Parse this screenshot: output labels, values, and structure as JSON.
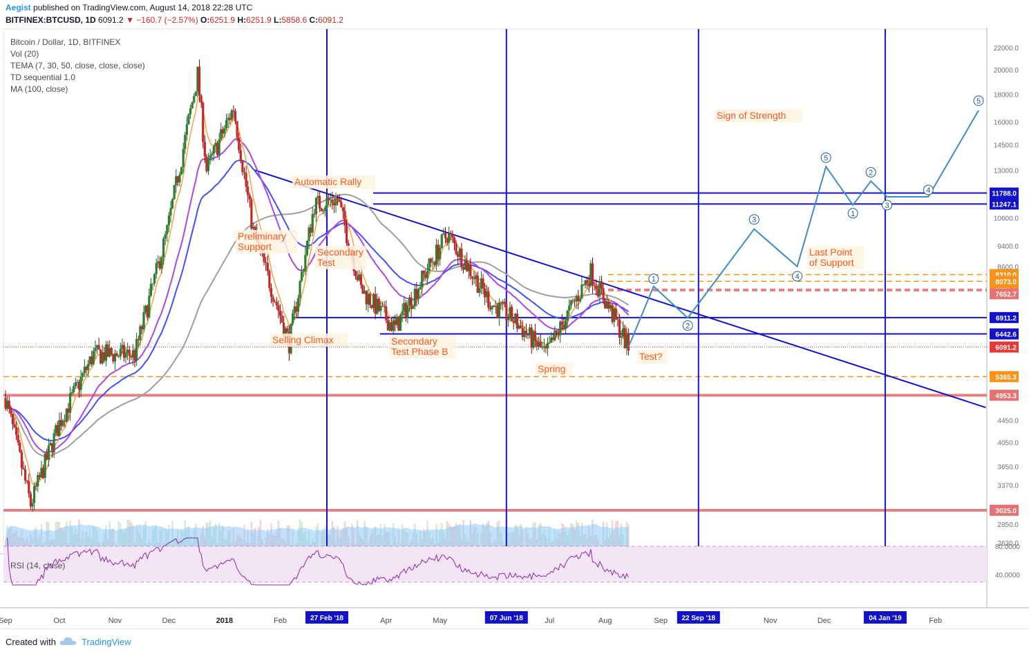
{
  "header": {
    "author": "Aegist",
    "published": "published on TradingView.com, August 14, 2018 22:28 UTC",
    "symbol": "BITFINEX:BTCUSD, 1D",
    "last": "6091.2",
    "change": "−160.7 (−2.57%)",
    "open_label": "O:",
    "open": "6251.9",
    "high_label": "H:",
    "high": "6251.9",
    "low_label": "L:",
    "low": "5858.6",
    "close_label": "C:",
    "close": "6091.2"
  },
  "legend": {
    "title": "Bitcoin / Dollar, 1D, BITFINEX",
    "items": [
      "Vol (20)",
      "TEMA (7, 30, 50, close, close, close)",
      "TD sequential 1.0",
      "MA (100, close)"
    ]
  },
  "rsi_label": "RSI (14, close)",
  "footer": {
    "created": "Created with",
    "brand": "TradingView"
  },
  "chart_data": {
    "type": "candlestick",
    "symbol": "BITFINEX:BTCUSD",
    "interval": "1D",
    "y_axis": {
      "scale": "log",
      "ticks": [
        22000,
        20000,
        18000,
        16000,
        14500,
        13000,
        11788,
        11247.1,
        10600,
        9400,
        8600,
        8310,
        8073,
        7779,
        7652.7,
        6911.2,
        6442.6,
        6091.2,
        5365.3,
        4953.3,
        4450,
        4050,
        3650,
        3370,
        3025,
        2850,
        2630
      ],
      "tick_labels": [
        "22000.0",
        "20000.0",
        "18000.0",
        "16000.0",
        "14500.0",
        "13000.0",
        "10600.0",
        "9400.0",
        "8600.0",
        "4450.0",
        "4050.0",
        "3650.0",
        "3370.0",
        "3000.0",
        "2850.0",
        "2630.0"
      ]
    },
    "x_axis": {
      "labels": [
        "Sep",
        "Oct",
        "Nov",
        "Dec",
        "2018",
        "Feb",
        "Apr",
        "May",
        "Jul",
        "Aug",
        "Sep",
        "Nov",
        "Dec",
        "Feb"
      ],
      "highlighted_dates": [
        "27 Feb '18",
        "07 Jun '18",
        "22 Sep '18",
        "04 Jan '19"
      ]
    },
    "price_path": [
      [
        "2017-09-01",
        4900
      ],
      [
        "2017-09-15",
        3100
      ],
      [
        "2017-10-01",
        4400
      ],
      [
        "2017-10-20",
        5900
      ],
      [
        "2017-11-12",
        5900
      ],
      [
        "2017-11-30",
        10000
      ],
      [
        "2017-12-17",
        19600
      ],
      [
        "2017-12-22",
        13000
      ],
      [
        "2018-01-06",
        17000
      ],
      [
        "2018-01-17",
        10000
      ],
      [
        "2018-02-06",
        6200
      ],
      [
        "2018-02-20",
        11200
      ],
      [
        "2018-03-05",
        11500
      ],
      [
        "2018-03-18",
        7800
      ],
      [
        "2018-04-06",
        6600
      ],
      [
        "2018-05-05",
        9900
      ],
      [
        "2018-05-30",
        7300
      ],
      [
        "2018-06-10",
        6900
      ],
      [
        "2018-06-29",
        5900
      ],
      [
        "2018-07-24",
        8400
      ],
      [
        "2018-08-14",
        6091.2
      ]
    ],
    "horizontal_levels": [
      {
        "label": "11788.0",
        "value": 11788,
        "color": "#1212c8"
      },
      {
        "label": "11247.1",
        "value": 11247.1,
        "color": "#1212c8"
      },
      {
        "label": "8310.0",
        "value": 8310,
        "color": "#f7931a"
      },
      {
        "label": "8073.0",
        "value": 8073,
        "color": "#f7931a"
      },
      {
        "label": "7779.0",
        "value": 7779,
        "color": "#f7931a"
      },
      {
        "label": "7652.7",
        "value": 7652.7,
        "color": "#e57373"
      },
      {
        "label": "6911.2",
        "value": 6911.2,
        "color": "#1212c8"
      },
      {
        "label": "6442.6",
        "value": 6442.6,
        "color": "#1212c8"
      },
      {
        "label": "6091.2",
        "value": 6091.2,
        "color": "#e53935"
      },
      {
        "label": "5365.3",
        "value": 5365.3,
        "color": "#f7931a"
      },
      {
        "label": "4953.3",
        "value": 4953.3,
        "color": "#e57373"
      },
      {
        "label": "3025.0",
        "value": 3025,
        "color": "#e57373"
      }
    ],
    "annotations": [
      "Automatic Rally",
      "Preliminary Support",
      "Secondary Test",
      "Selling Climax",
      "Secondary Test Phase B",
      "Spring",
      "Test?",
      "Last Point of Support",
      "Sign of Strength"
    ],
    "wave_labels": [
      "1",
      "2",
      "3",
      "4",
      "5",
      "1",
      "2",
      "3",
      "4",
      "5"
    ],
    "projection": [
      [
        "2018-08-14",
        6091
      ],
      [
        "2018-08-28",
        7900
      ],
      [
        "2018-09-16",
        6900
      ],
      [
        "2018-10-23",
        10100
      ],
      [
        "2018-11-16",
        8600
      ],
      [
        "2018-12-02",
        13200
      ],
      [
        "2018-12-17",
        11200
      ],
      [
        "2018-12-27",
        12400
      ],
      [
        "2019-01-05",
        11600
      ],
      [
        "2019-01-28",
        11600
      ],
      [
        "2019-02-25",
        16800
      ]
    ],
    "wave_points": [
      [
        "2018-08-28",
        7900
      ],
      [
        "2018-09-16",
        6900
      ],
      [
        "2018-10-23",
        10100
      ],
      [
        "2018-11-16",
        8600
      ],
      [
        "2018-12-02",
        13200
      ],
      [
        "2018-12-17",
        11200
      ],
      [
        "2018-12-27",
        12400
      ],
      [
        "2019-01-05",
        11600
      ],
      [
        "2019-01-28",
        11600
      ],
      [
        "2019-02-25",
        16800
      ]
    ],
    "rsi_levels": [
      80,
      40
    ],
    "rsi_axis_labels": [
      "80.0000",
      "40.0000"
    ]
  }
}
